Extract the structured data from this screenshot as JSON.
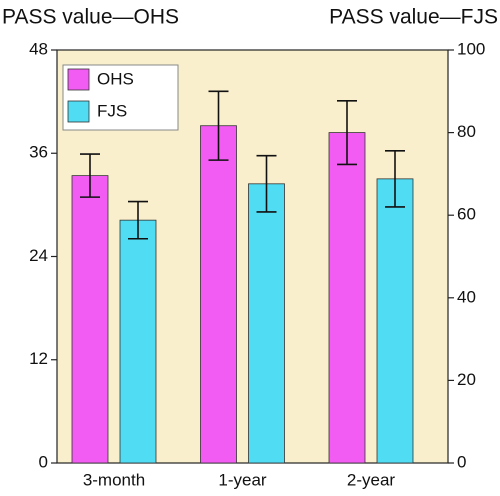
{
  "chart_data": {
    "type": "bar",
    "y_title": "PASS value—OHS",
    "y2_title": "PASS value—FJS",
    "categories": [
      "3-month",
      "1-year",
      "2-year"
    ],
    "series": [
      {
        "name": "OHS",
        "color": "#f25cf2",
        "values": [
          33.4,
          39.2,
          38.4
        ],
        "errors": [
          2.5,
          4.0,
          3.7
        ]
      },
      {
        "name": "FJS",
        "color": "#50dcf2",
        "axis": "y2",
        "values": [
          58.8,
          67.6,
          68.8
        ],
        "errors": [
          4.5,
          6.8,
          6.8
        ]
      }
    ],
    "ylim": [
      0,
      48
    ],
    "yticks": [
      0,
      12,
      24,
      36,
      48
    ],
    "y2lim": [
      0,
      100
    ],
    "y2ticks": [
      0,
      20,
      40,
      60,
      80,
      100
    ],
    "legend": "top-left"
  }
}
